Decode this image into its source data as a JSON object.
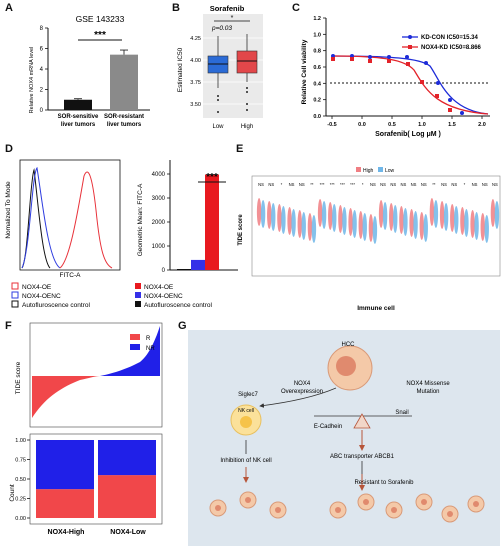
{
  "panels": {
    "A": {
      "letter": "A",
      "title": "GSE 143233",
      "ylabel": "Relative NOX4 mRNA level",
      "significance": "***",
      "yticks": [
        "0",
        "2",
        "4",
        "6",
        "8"
      ],
      "categories": [
        "SOR-sensitive liver tumors",
        "SOR-resistant liver tumors"
      ],
      "values": [
        1.0,
        5.4
      ],
      "errors": [
        0.1,
        0.45
      ],
      "colors": [
        "#111111",
        "#8a8a8a"
      ]
    },
    "B": {
      "letter": "B",
      "title": "Sorafenib",
      "significance": "*",
      "pvalue": "p=0.03",
      "ylabel": "Estimated IC50",
      "yticks": [
        "3.50",
        "3.75",
        "4.00",
        "4.25"
      ],
      "groups": [
        "Low",
        "High"
      ],
      "colors": [
        "#2b6bd6",
        "#e2474a"
      ]
    },
    "C": {
      "letter": "C",
      "ylabel": "Relative Cell viability",
      "xlabel": "Sorafenib( Log μM )",
      "xticks": [
        "-0.5",
        "0.0",
        "0.5",
        "1.0",
        "1.5",
        "2.0"
      ],
      "yticks": [
        "0.0",
        "0.2",
        "0.4",
        "0.6",
        "0.8",
        "1.0",
        "1.2"
      ],
      "legend": [
        {
          "label": "KD-CON  IC50=15.34",
          "color": "#1d2bd8"
        },
        {
          "label": "NOX4-KD IC50=8.866",
          "color": "#e3232a"
        }
      ]
    },
    "D": {
      "letter": "D",
      "hist_ylabel": "Nomalized To Mode",
      "hist_xlabel": "FITC-A",
      "hist_legend": [
        {
          "label": "NOX4-OE",
          "color": "#e8323a"
        },
        {
          "label": "NOX4-OENC",
          "color": "#2f3de0"
        },
        {
          "label": "Autofluroscence control",
          "color": "#111111"
        }
      ],
      "bar_ylabel": "Geometric Mean: FITC-A",
      "bar_yticks": [
        "0",
        "1000",
        "2000",
        "3000",
        "4000"
      ],
      "bar_sig": "***",
      "bar_values": [
        30,
        420,
        3980
      ],
      "bar_legend": [
        {
          "label": "NOX4-OE",
          "color": "#e8191f"
        },
        {
          "label": "NOX4-OENC",
          "color": "#3530e8"
        },
        {
          "label": "Autofluroscence control",
          "color": "#111111"
        }
      ]
    },
    "E": {
      "letter": "E",
      "legend": [
        "High",
        "Low"
      ],
      "ylabel": "TIDE score",
      "xlabel": "Immune cell",
      "sig_labels": [
        "NS",
        "NS",
        "*",
        "NS",
        "NS",
        "**",
        "***",
        "***",
        "***",
        "***",
        "*",
        "NS",
        "NS",
        "NS",
        "NS",
        "NS",
        "NS",
        "**",
        "NS",
        "NS",
        "*",
        "NS",
        "NS",
        "NS"
      ]
    },
    "F": {
      "letter": "F",
      "top_ylabel": "TIDE score",
      "legend": [
        {
          "label": "R",
          "color": "#f1474a"
        },
        {
          "label": "NR",
          "color": "#2020e8"
        }
      ],
      "bottom_ylabel": "Count",
      "bottom_yticks": [
        "0.00",
        "0.25",
        "0.50",
        "0.75",
        "1.00"
      ],
      "groups": [
        "NOX4-High",
        "NOX4-Low"
      ],
      "r_fraction": [
        0.37,
        0.55
      ]
    },
    "G": {
      "letter": "G",
      "hcc": "HCC",
      "nox4_over": "NOX4 Overexpression",
      "nox4_mis": "NOX4 Missense Mutation",
      "siglec": "Siglec7",
      "nk": "NK cell",
      "ecad": "E-Cadhein",
      "snail": "Snail",
      "inhibition": "Inhibition of NK cell",
      "abc": "ABC transporter ABCB1",
      "resist": "Resistant to Sorafenib"
    }
  }
}
